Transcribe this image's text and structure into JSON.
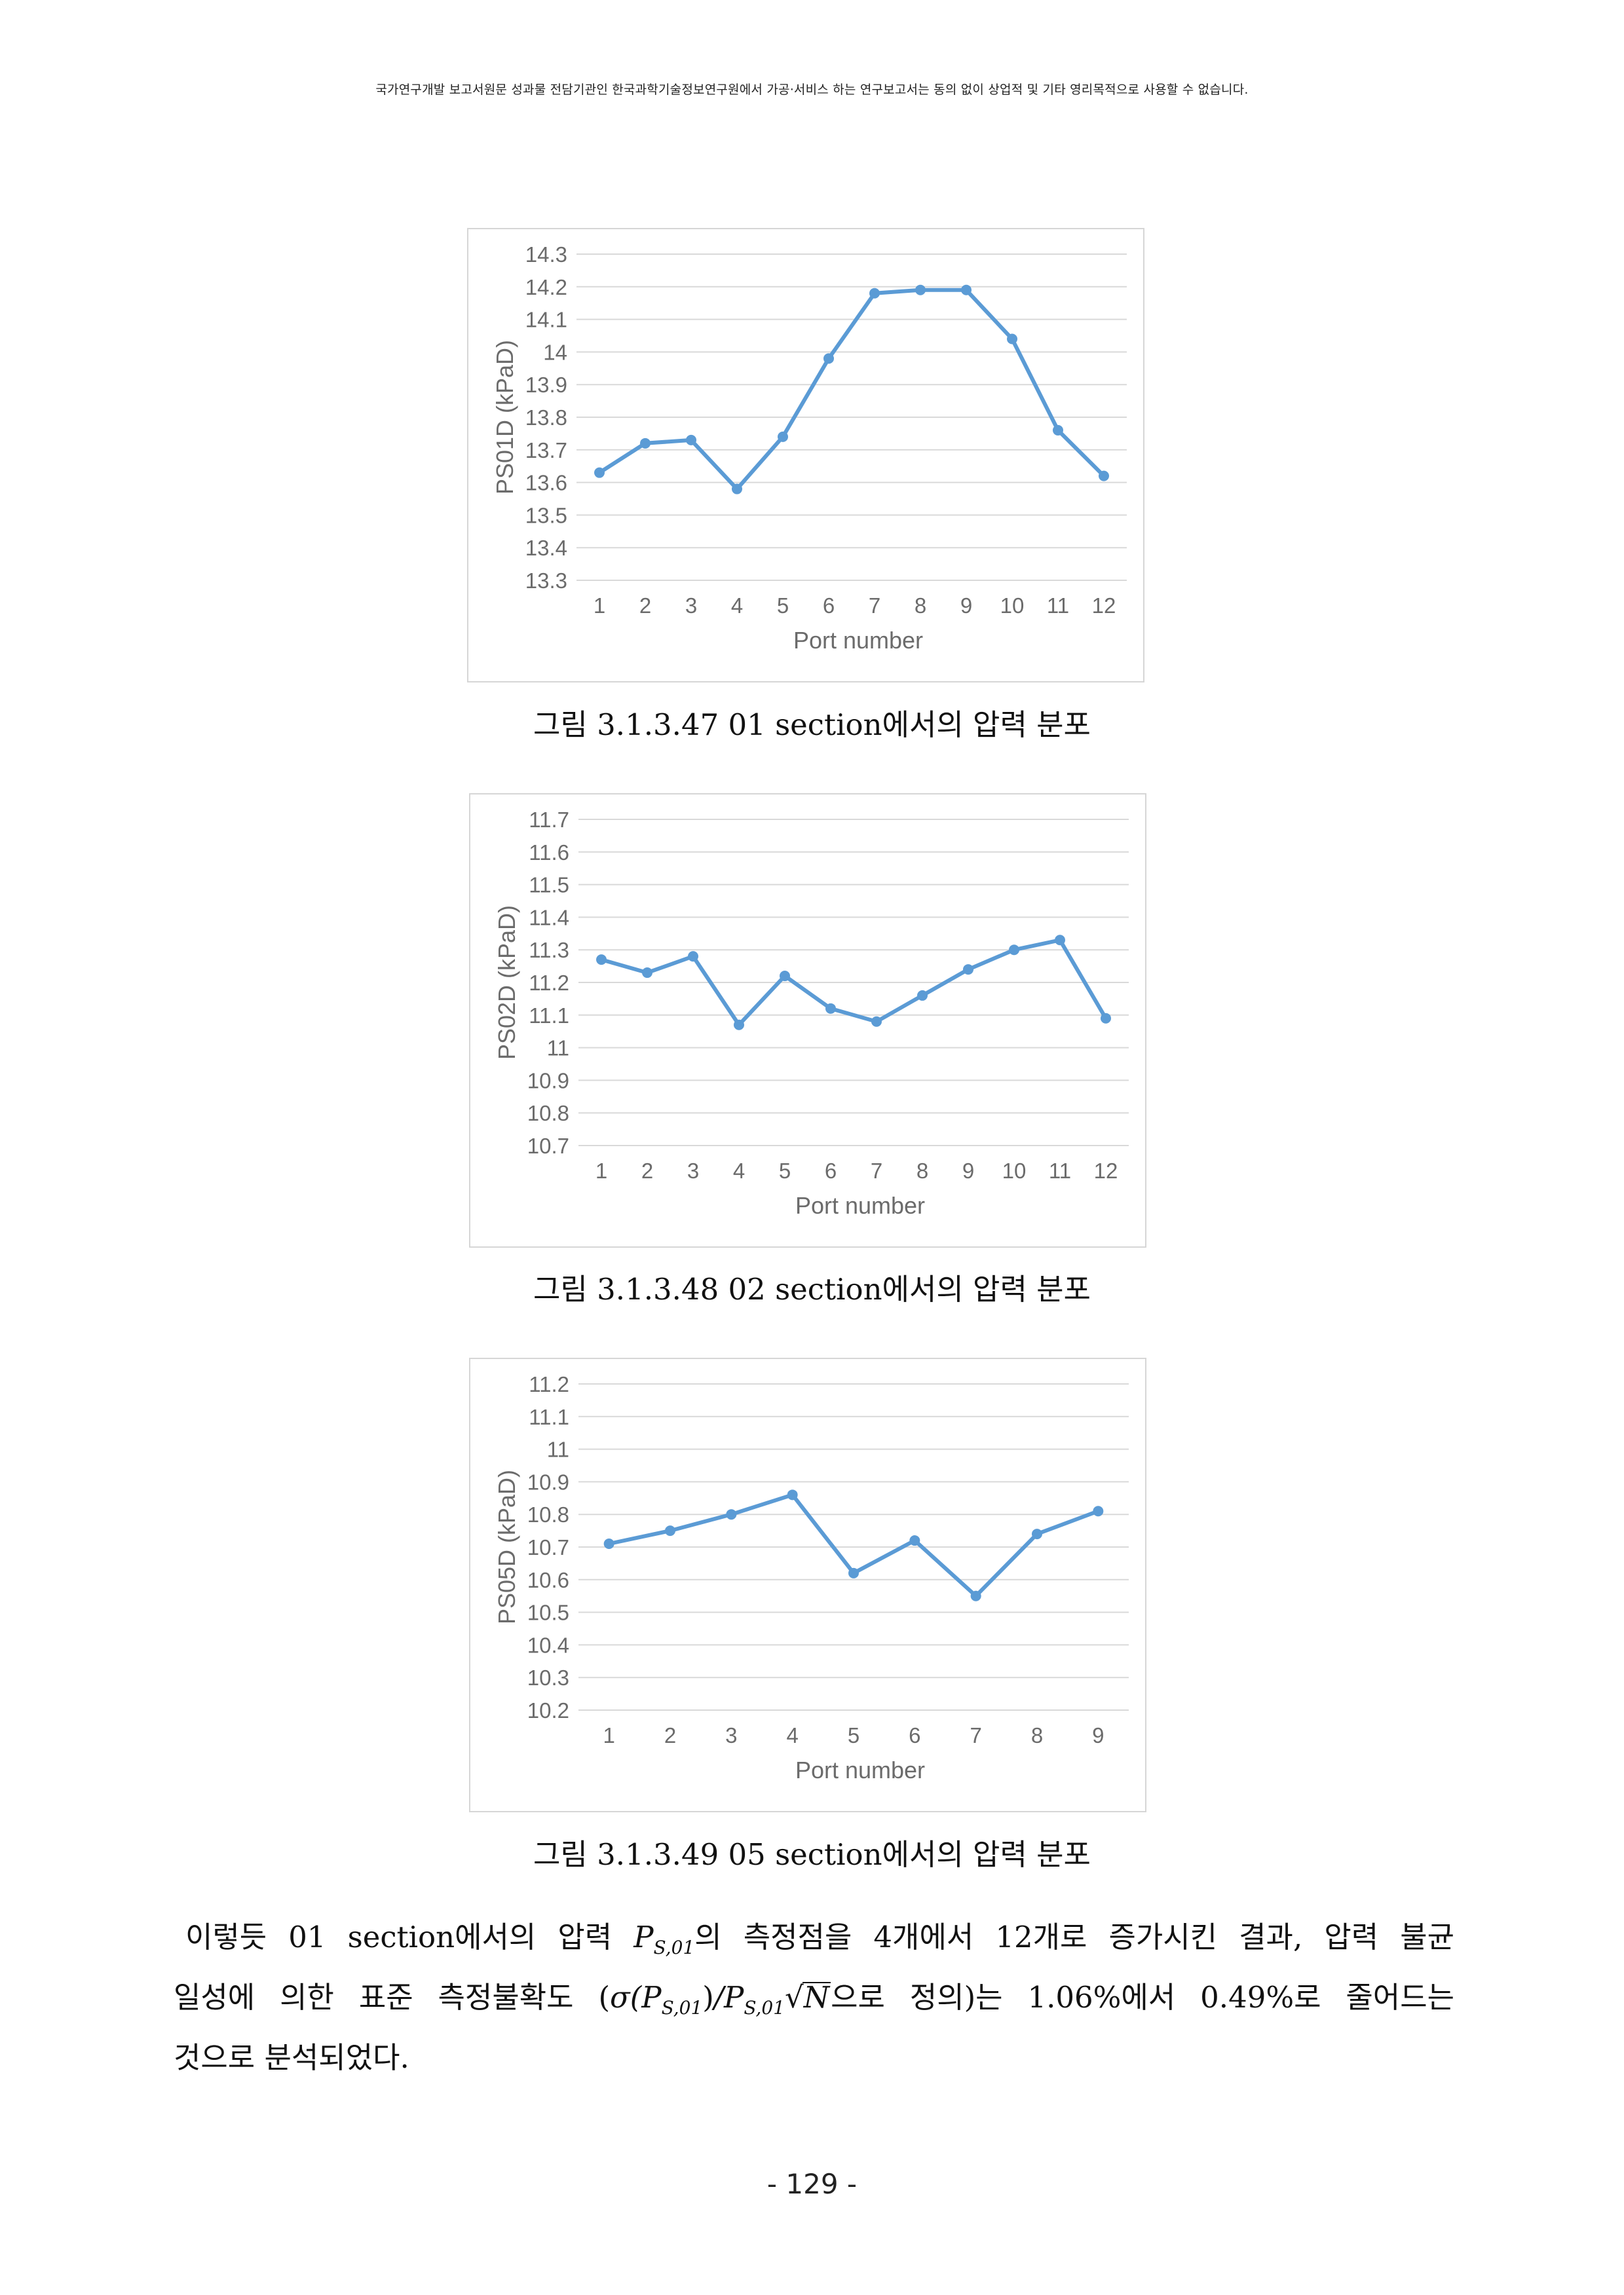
{
  "header": {
    "notice": "국가연구개발 보고서원문 성과물 전담기관인 한국과학기술정보연구원에서 가공·서비스 하는 연구보고서는 동의 없이 상업적 및 기타 영리목적으로 사용할 수 없습니다."
  },
  "figures": [
    {
      "caption": "그림 3.1.3.47 01 section에서의 압력 분포",
      "chart_data": {
        "type": "line",
        "categories": [
          "1",
          "2",
          "3",
          "4",
          "5",
          "6",
          "7",
          "8",
          "9",
          "10",
          "11",
          "12"
        ],
        "series": [
          {
            "values": [
              13.63,
              13.72,
              13.73,
              13.58,
              13.74,
              13.98,
              14.18,
              14.19,
              14.19,
              14.04,
              13.76,
              13.62
            ]
          }
        ],
        "xlabel": "Port number",
        "ylabel": "PS01D (kPaD)",
        "ylim": [
          13.3,
          14.3
        ],
        "yticks": [
          "13.3",
          "13.4",
          "13.5",
          "13.6",
          "13.7",
          "13.8",
          "13.9",
          "14",
          "14.1",
          "14.2",
          "14.3"
        ],
        "grid": true,
        "color": "#5b9bd5"
      }
    },
    {
      "caption": "그림 3.1.3.48 02 section에서의 압력 분포",
      "chart_data": {
        "type": "line",
        "categories": [
          "1",
          "2",
          "3",
          "4",
          "5",
          "6",
          "7",
          "8",
          "9",
          "10",
          "11",
          "12"
        ],
        "series": [
          {
            "values": [
              11.27,
              11.23,
              11.28,
              11.07,
              11.22,
              11.12,
              11.08,
              11.16,
              11.24,
              11.3,
              11.33,
              11.09
            ]
          }
        ],
        "xlabel": "Port number",
        "ylabel": "PS02D (kPaD)",
        "ylim": [
          10.7,
          11.7
        ],
        "yticks": [
          "10.7",
          "10.8",
          "10.9",
          "11",
          "11.1",
          "11.2",
          "11.3",
          "11.4",
          "11.5",
          "11.6",
          "11.7"
        ],
        "grid": true,
        "color": "#5b9bd5"
      }
    },
    {
      "caption": "그림 3.1.3.49 05 section에서의 압력 분포",
      "chart_data": {
        "type": "line",
        "categories": [
          "1",
          "2",
          "3",
          "4",
          "5",
          "6",
          "7",
          "8",
          "9"
        ],
        "series": [
          {
            "values": [
              10.71,
              10.75,
              10.8,
              10.86,
              10.62,
              10.72,
              10.55,
              10.74,
              10.81
            ]
          }
        ],
        "xlabel": "Port number",
        "ylabel": "PS05D (kPaD)",
        "ylim": [
          10.2,
          11.2
        ],
        "yticks": [
          "10.2",
          "10.3",
          "10.4",
          "10.5",
          "10.6",
          "10.7",
          "10.8",
          "10.9",
          "11",
          "11.1",
          "11.2"
        ],
        "grid": true,
        "color": "#5b9bd5"
      }
    }
  ],
  "paragraph": {
    "p1": "이렇듯 01 section에서의 압력 ",
    "P": "P",
    "sub": "S,01",
    "p2": "의 측정점을 4개에서 12개로 증가시킨 결과, 압력 불균",
    "p3": "일성에 의한 표준 측정불확도 (",
    "sigma": "σ(",
    "close": ")",
    "slash": "/",
    "radical": "√",
    "N": "N",
    "p4": "으로 정의)는 1.06%에서 0.49%로 줄어드는",
    "p5": "것으로 분석되었다."
  },
  "page_number": "- 129 -"
}
